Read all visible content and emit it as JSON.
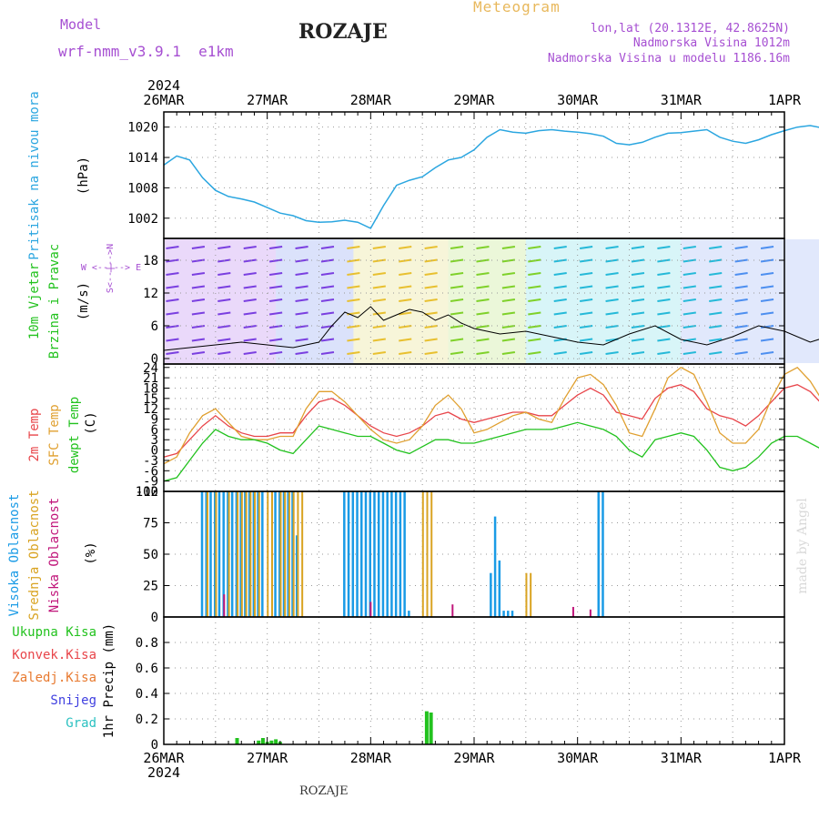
{
  "header": {
    "model_label": "Model",
    "model_name": "wrf-nmm_v3.9.1  e1km",
    "station": "ROZAJE",
    "product": "Meteogram",
    "lonlat": "lon,lat (20.1312E, 42.8625N)",
    "altitude": "Nadmorska Visina 1012m",
    "model_altitude": "Nadmorska Visina u modelu 1186.16m",
    "footer_station": "ROZAJE",
    "watermark": "made by Angel"
  },
  "time_axis": {
    "year": "2024",
    "labels": [
      "26MAR",
      "27MAR",
      "28MAR",
      "29MAR",
      "30MAR",
      "31MAR",
      "1APR"
    ],
    "hours_per_day": 24
  },
  "panel_labels": {
    "pressure": {
      "name": "Pritisak na nivou mora",
      "unit": "(hPa)"
    },
    "wind": {
      "speed_label": "10m Vjetar",
      "dir_label": "Brzina i Pravac",
      "unit": "(m/s)",
      "compass": "W <--|--> E",
      "compass2": "S<--|-->N"
    },
    "temp": {
      "t2m": "2m Temp",
      "sfc": "SFC Temp",
      "dew": "dewpt Temp",
      "unit": "(C)"
    },
    "cloud": {
      "high": "Visoka Oblacnost",
      "mid": "Srednja Oblacnost",
      "low": "Niska Oblacnost",
      "unit": "(%)"
    },
    "precip": {
      "total": "Ukupna Kisa",
      "conv": "Konvek.Kisa",
      "frozen": "Zaledj.Kisa",
      "snow": "Snijeg",
      "graupel": "Grad",
      "unit": "1hr Precip (mm)"
    }
  },
  "colors": {
    "pressure": "#2ba6e0",
    "t2m": "#e8454a",
    "sfc": "#e0a030",
    "dew": "#22c21e",
    "high_cloud": "#1a9be6",
    "mid_cloud": "#d9a321",
    "low_cloud": "#c0157a",
    "precip_total": "#22c21e",
    "precip_conv": "#e8454a",
    "precip_frozen": "#e87a30",
    "snow": "#4040e0",
    "graupel": "#2bc1c1",
    "purple_text": "#a64fd2",
    "orange_text": "#e8b85c"
  },
  "chart_data": [
    {
      "type": "line",
      "ylabel": "(hPa)",
      "ylim": [
        998,
        1023
      ],
      "yticks": [
        1002,
        1008,
        1014,
        1020
      ],
      "grid": true,
      "series": [
        {
          "name": "Pritisak na nivou mora",
          "x": [
            0,
            3,
            6,
            9,
            12,
            15,
            18,
            21,
            24,
            27,
            30,
            33,
            36,
            39,
            42,
            45,
            48,
            51,
            54,
            57,
            60,
            63,
            66,
            69,
            72,
            75,
            78,
            81,
            84,
            87,
            90,
            93,
            96,
            99,
            102,
            105,
            108,
            111,
            114,
            117,
            120,
            123,
            126,
            129,
            132,
            135,
            138,
            141,
            144,
            147,
            150,
            153,
            156,
            159,
            162,
            165,
            168
          ],
          "values": [
            1012.5,
            1014.3,
            1013.5,
            1010.0,
            1007.5,
            1006.3,
            1005.8,
            1005.2,
            1004.1,
            1003.0,
            1002.5,
            1001.5,
            1001.2,
            1001.3,
            1001.6,
            1001.2,
            1000.0,
            1004.5,
            1008.5,
            1009.5,
            1010.2,
            1012.0,
            1013.5,
            1014.0,
            1015.5,
            1018.0,
            1019.5,
            1019.0,
            1018.8,
            1019.3,
            1019.5,
            1019.2,
            1019.0,
            1018.7,
            1018.2,
            1016.8,
            1016.5,
            1017.0,
            1018.0,
            1018.8,
            1018.9,
            1019.2,
            1019.5,
            1018.0,
            1017.2,
            1016.8,
            1017.5,
            1018.5,
            1019.3,
            1020.0,
            1020.3,
            1019.8,
            1020.0,
            1020.5,
            1020.8,
            1021.0,
            1020.7
          ]
        }
      ]
    },
    {
      "type": "line",
      "ylabel": "(m/s)",
      "ylim": [
        -1,
        22
      ],
      "yticks": [
        0,
        6,
        12,
        18
      ],
      "grid": true,
      "series": [
        {
          "name": "",
          "x": [
            0,
            6,
            12,
            18,
            24,
            30,
            36,
            39,
            42,
            45,
            48,
            51,
            54,
            57,
            60,
            63,
            66,
            69,
            72,
            78,
            84,
            90,
            96,
            102,
            108,
            114,
            120,
            126,
            132,
            138,
            144,
            150,
            156,
            162,
            168
          ],
          "values": [
            1.5,
            2.0,
            2.5,
            3.0,
            2.5,
            2.0,
            3.0,
            6.0,
            8.5,
            7.5,
            9.5,
            7.0,
            8.0,
            9.0,
            8.5,
            7.0,
            8.0,
            6.5,
            5.5,
            4.5,
            5.0,
            4.0,
            3.0,
            2.5,
            4.5,
            6.0,
            3.5,
            2.5,
            4.0,
            6.0,
            5.0,
            3.0,
            4.5,
            6.5,
            3.0
          ]
        }
      ]
    },
    {
      "type": "line",
      "ylabel": "(C)",
      "ylim": [
        -12,
        25
      ],
      "yticks": [
        -12,
        -9,
        -6,
        -3,
        0,
        3,
        6,
        9,
        12,
        15,
        18,
        21,
        24
      ],
      "grid": true,
      "series": [
        {
          "name": "2m Temp",
          "x": [
            0,
            3,
            6,
            9,
            12,
            15,
            18,
            21,
            24,
            27,
            30,
            33,
            36,
            39,
            42,
            45,
            48,
            51,
            54,
            57,
            60,
            63,
            66,
            69,
            72,
            75,
            78,
            81,
            84,
            87,
            90,
            93,
            96,
            99,
            102,
            105,
            108,
            111,
            114,
            117,
            120,
            123,
            126,
            129,
            132,
            135,
            138,
            141,
            144,
            147,
            150,
            153,
            156,
            159,
            162,
            165,
            168
          ],
          "values": [
            -2,
            -1,
            3,
            7,
            10,
            7,
            5,
            4,
            4,
            5,
            5,
            10,
            14,
            15,
            13,
            10,
            7,
            5,
            4,
            5,
            7,
            10,
            11,
            9,
            8,
            9,
            10,
            11,
            11,
            10,
            10,
            13,
            16,
            18,
            16,
            11,
            10,
            9,
            15,
            18,
            19,
            17,
            12,
            10,
            9,
            7,
            10,
            14,
            18,
            19,
            17,
            13,
            10,
            8,
            9,
            10,
            9
          ]
        },
        {
          "name": "SFC Temp",
          "x": [
            0,
            3,
            6,
            9,
            12,
            15,
            18,
            21,
            24,
            27,
            30,
            33,
            36,
            39,
            42,
            45,
            48,
            51,
            54,
            57,
            60,
            63,
            66,
            69,
            72,
            75,
            78,
            81,
            84,
            87,
            90,
            93,
            96,
            99,
            102,
            105,
            108,
            111,
            114,
            117,
            120,
            123,
            126,
            129,
            132,
            135,
            138,
            141,
            144,
            147,
            150,
            153,
            156,
            159,
            162,
            165,
            168
          ],
          "values": [
            -4,
            -2,
            5,
            10,
            12,
            8,
            4,
            3,
            3,
            4,
            4,
            12,
            17,
            17,
            14,
            10,
            6,
            3,
            2,
            3,
            7,
            13,
            16,
            12,
            5,
            6,
            8,
            10,
            11,
            9,
            8,
            15,
            21,
            22,
            19,
            13,
            5,
            4,
            12,
            21,
            24,
            22,
            14,
            5,
            2,
            2,
            6,
            15,
            22,
            24,
            20,
            14,
            8,
            5,
            6,
            7,
            5
          ]
        },
        {
          "name": "dewpt Temp",
          "x": [
            0,
            3,
            6,
            9,
            12,
            15,
            18,
            21,
            24,
            27,
            30,
            33,
            36,
            39,
            42,
            45,
            48,
            51,
            54,
            57,
            60,
            63,
            66,
            69,
            72,
            75,
            78,
            81,
            84,
            87,
            90,
            93,
            96,
            99,
            102,
            105,
            108,
            111,
            114,
            117,
            120,
            123,
            126,
            129,
            132,
            135,
            138,
            141,
            144,
            147,
            150,
            153,
            156,
            159,
            162,
            165,
            168
          ],
          "values": [
            -9,
            -8,
            -3,
            2,
            6,
            4,
            3,
            3,
            2,
            0,
            -1,
            3,
            7,
            6,
            5,
            4,
            4,
            2,
            0,
            -1,
            1,
            3,
            3,
            2,
            2,
            3,
            4,
            5,
            6,
            6,
            6,
            7,
            8,
            7,
            6,
            4,
            0,
            -2,
            3,
            4,
            5,
            4,
            0,
            -5,
            -6,
            -5,
            -2,
            2,
            4,
            4,
            2,
            0,
            1,
            2,
            -2,
            -4,
            -7
          ]
        }
      ]
    },
    {
      "type": "bar",
      "ylabel": "(%)",
      "ylim": [
        0,
        100
      ],
      "yticks": [
        0,
        25,
        50,
        75,
        100
      ],
      "grid": true,
      "series": [
        {
          "name": "Visoka Oblacnost",
          "x": [
            9,
            10,
            11,
            12,
            13,
            14,
            15,
            16,
            17,
            18,
            19,
            20,
            21,
            22,
            23,
            26,
            27,
            28,
            29,
            30,
            31,
            42,
            43,
            44,
            45,
            46,
            47,
            48,
            49,
            50,
            51,
            52,
            53,
            54,
            55,
            56,
            57,
            76,
            77,
            78,
            79,
            80,
            81,
            101,
            102
          ],
          "values": [
            100,
            100,
            100,
            100,
            100,
            100,
            100,
            100,
            100,
            100,
            100,
            100,
            100,
            100,
            100,
            100,
            100,
            100,
            100,
            100,
            65,
            100,
            100,
            100,
            100,
            100,
            100,
            100,
            100,
            100,
            100,
            100,
            100,
            100,
            100,
            100,
            5,
            35,
            80,
            45,
            5,
            5,
            5,
            100,
            100
          ]
        },
        {
          "name": "Srednja Oblacnost",
          "x": [
            10,
            12,
            15,
            17,
            18,
            19,
            20,
            21,
            22,
            24,
            25,
            27,
            28,
            29,
            30,
            31,
            32,
            60,
            61,
            62,
            84,
            85
          ],
          "values": [
            100,
            100,
            100,
            100,
            100,
            100,
            100,
            100,
            100,
            100,
            100,
            100,
            100,
            100,
            100,
            100,
            100,
            100,
            100,
            100,
            35,
            35
          ]
        },
        {
          "name": "Niska Oblacnost",
          "x": [
            14,
            48,
            67,
            95,
            99
          ],
          "values": [
            18,
            12,
            10,
            8,
            6
          ]
        }
      ]
    },
    {
      "type": "bar",
      "ylabel": "1hr Precip (mm)",
      "ylim": [
        0,
        1.0
      ],
      "yticks": [
        0,
        0.2,
        0.4,
        0.6,
        0.8
      ],
      "grid": true,
      "series": [
        {
          "name": "Ukupna Kisa",
          "x": [
            17,
            22,
            23,
            24,
            25,
            26,
            27,
            61,
            62
          ],
          "values": [
            0.05,
            0.03,
            0.05,
            0.02,
            0.03,
            0.04,
            0.02,
            0.26,
            0.25
          ]
        }
      ]
    }
  ]
}
